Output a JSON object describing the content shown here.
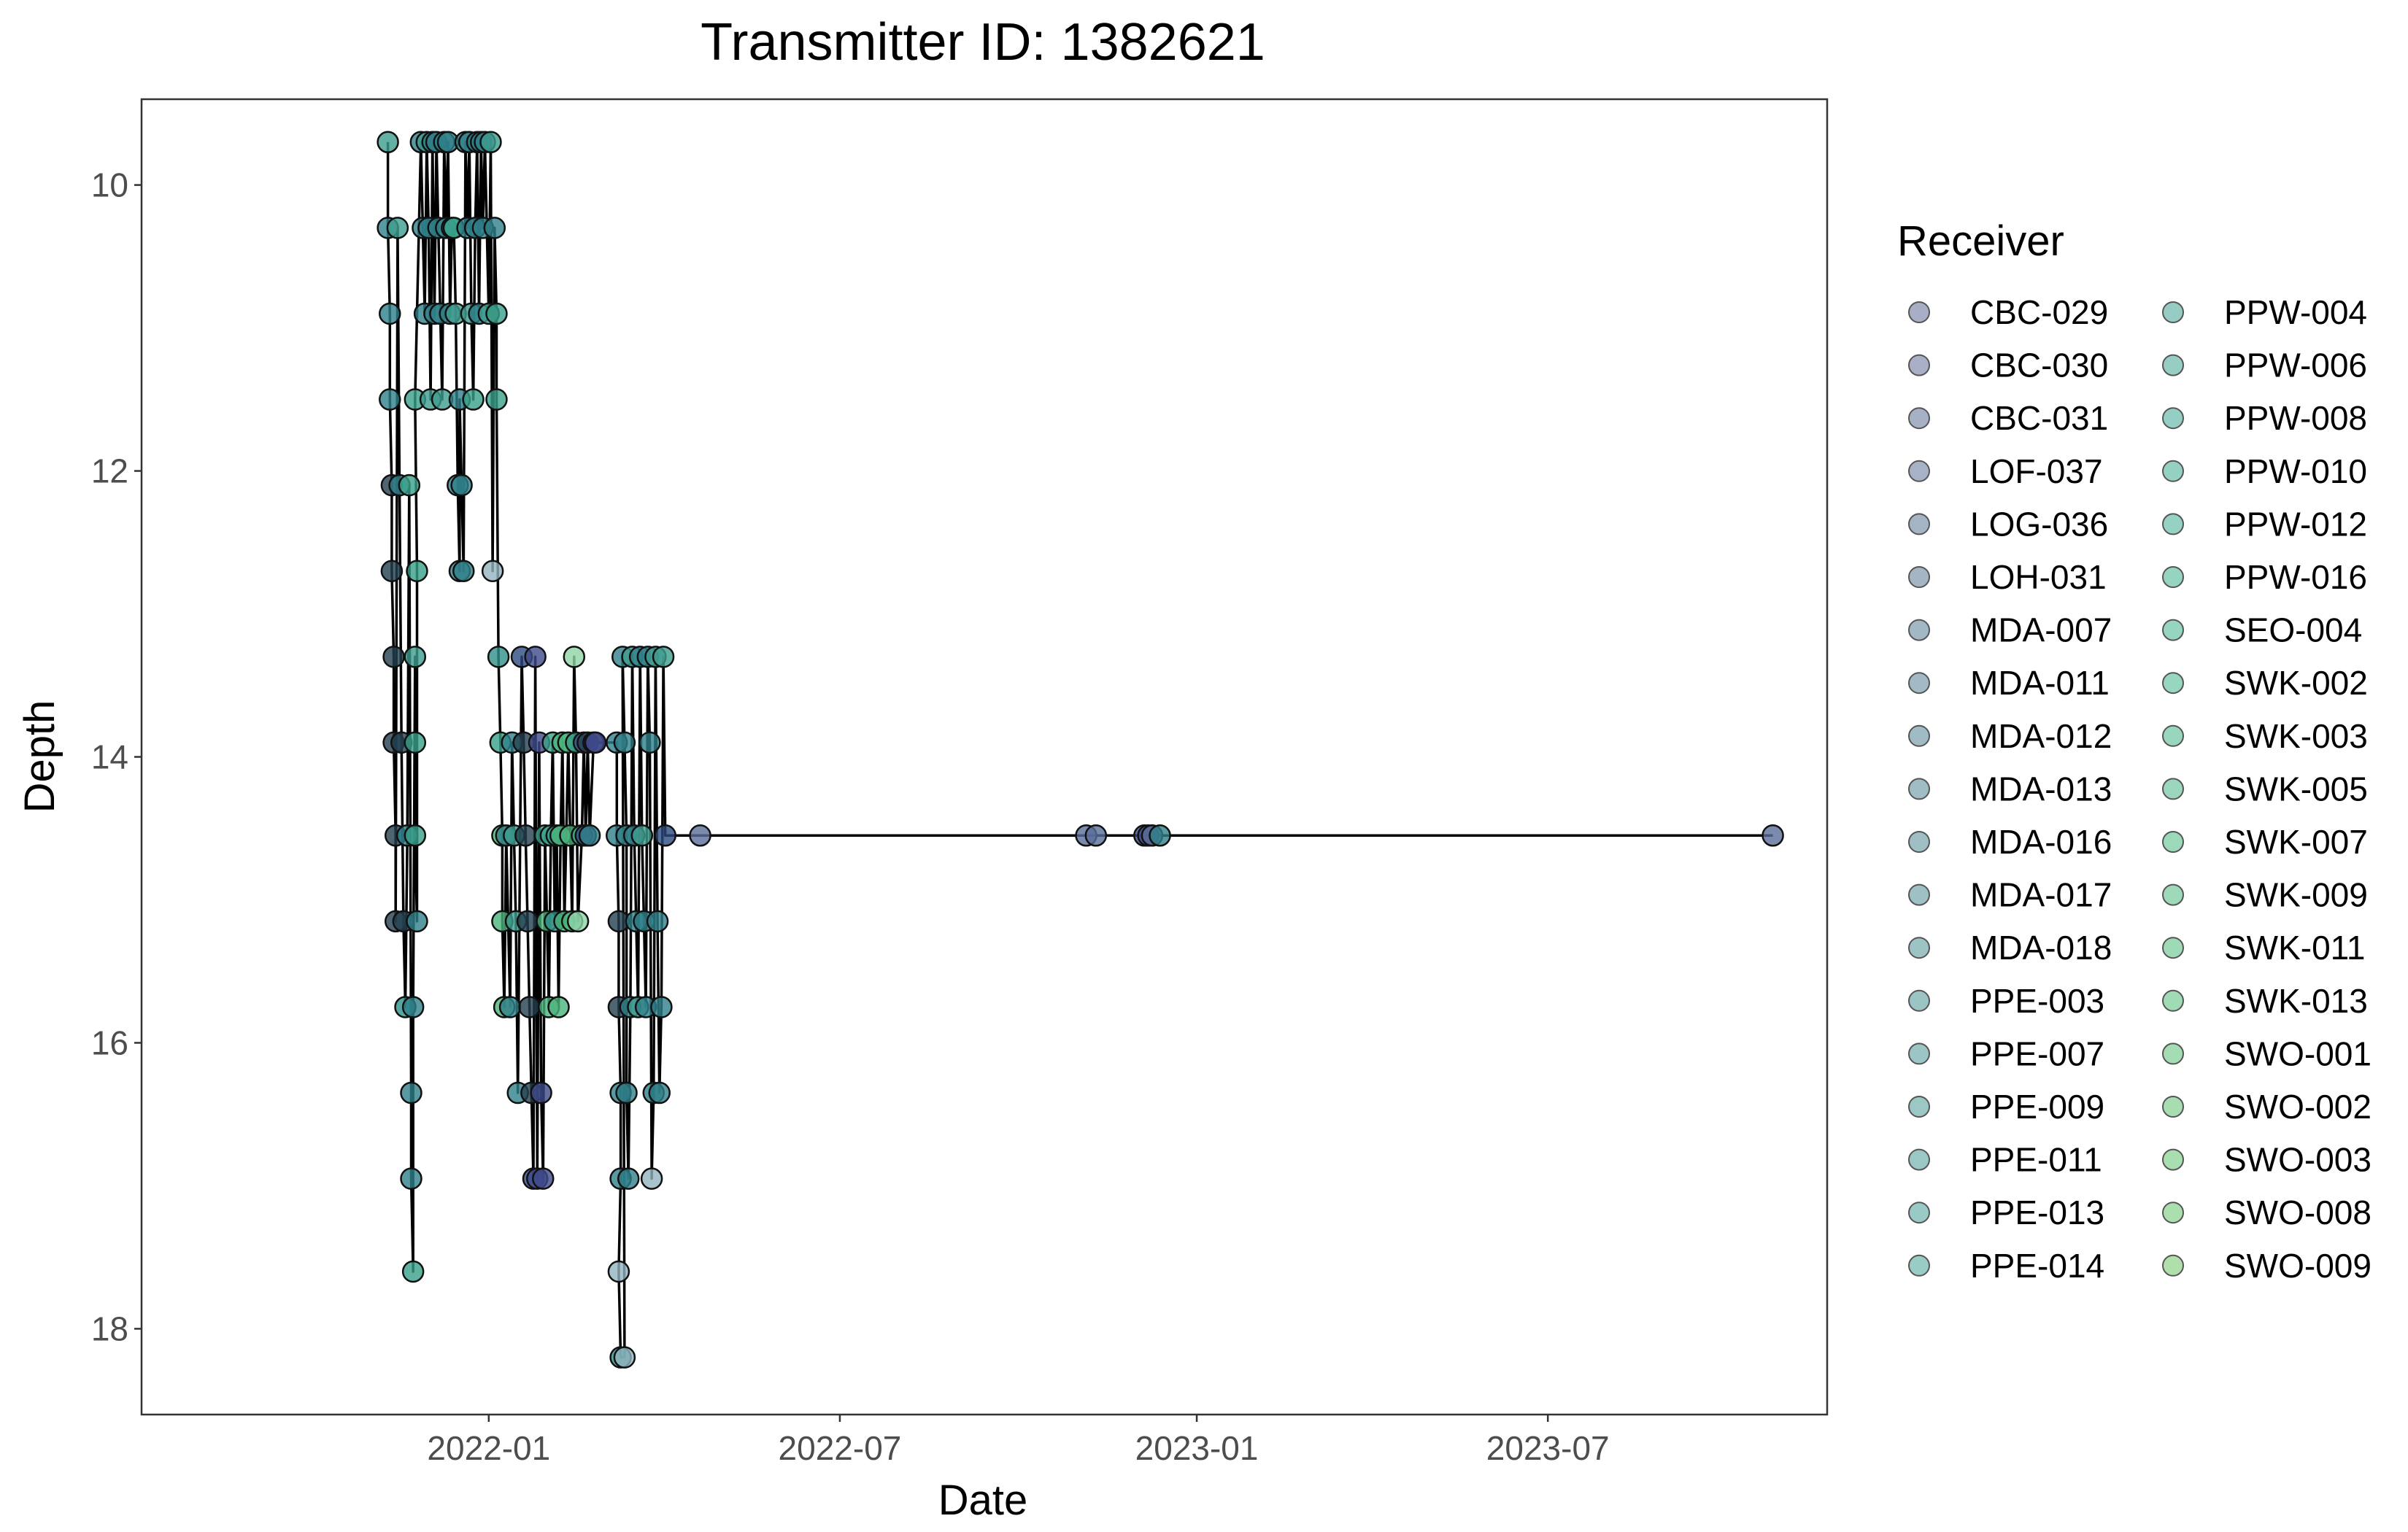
{
  "chart_data": {
    "type": "scatter",
    "title": "Transmitter ID: 1382621",
    "xlabel": "Date",
    "ylabel": "Depth",
    "x_type": "date",
    "xlim": [
      "2021-07-06",
      "2023-11-22"
    ],
    "ylim": [
      18.6,
      9.4
    ],
    "y_reversed": true,
    "x_ticks": [
      "2022-01",
      "2022-07",
      "2023-01",
      "2023-07"
    ],
    "y_ticks": [
      10,
      12,
      14,
      16,
      18
    ],
    "grid": false,
    "connected_by_line": true,
    "legend": {
      "title": "Receiver",
      "placement": "right",
      "columns": 2
    },
    "receivers": [
      {
        "name": "CBC-029",
        "color": "#9fa5c0"
      },
      {
        "name": "CBC-030",
        "color": "#9ea6c0"
      },
      {
        "name": "CBC-031",
        "color": "#9da8c0"
      },
      {
        "name": "LOF-037",
        "color": "#9caabf"
      },
      {
        "name": "LOG-036",
        "color": "#9bacbf"
      },
      {
        "name": "LOH-031",
        "color": "#9aaebf"
      },
      {
        "name": "MDA-007",
        "color": "#99b0bf"
      },
      {
        "name": "MDA-011",
        "color": "#98b2bf"
      },
      {
        "name": "MDA-012",
        "color": "#97b4bf"
      },
      {
        "name": "MDA-013",
        "color": "#96b6bf"
      },
      {
        "name": "MDA-016",
        "color": "#95b8bf"
      },
      {
        "name": "MDA-017",
        "color": "#94babf"
      },
      {
        "name": "MDA-018",
        "color": "#93bcbf"
      },
      {
        "name": "PPE-003",
        "color": "#92bebf"
      },
      {
        "name": "PPE-007",
        "color": "#91c0bf"
      },
      {
        "name": "PPE-009",
        "color": "#90c1bf"
      },
      {
        "name": "PPE-011",
        "color": "#8fc3bf"
      },
      {
        "name": "PPE-013",
        "color": "#8ec4bf"
      },
      {
        "name": "PPE-014",
        "color": "#8dc6bf"
      },
      {
        "name": "PPW-004",
        "color": "#8cc7be"
      },
      {
        "name": "PPW-006",
        "color": "#8bc9be"
      },
      {
        "name": "PPW-008",
        "color": "#8acabd"
      },
      {
        "name": "PPW-010",
        "color": "#89ccbd"
      },
      {
        "name": "PPW-012",
        "color": "#89cdbc"
      },
      {
        "name": "PPW-016",
        "color": "#8acfba"
      },
      {
        "name": "SEO-004",
        "color": "#8bd0b9"
      },
      {
        "name": "SWK-002",
        "color": "#8cd1b8"
      },
      {
        "name": "SWK-003",
        "color": "#8dd2b7"
      },
      {
        "name": "SWK-005",
        "color": "#8fd3b5"
      },
      {
        "name": "SWK-007",
        "color": "#91d4b3"
      },
      {
        "name": "SWK-009",
        "color": "#93d5b1"
      },
      {
        "name": "SWK-011",
        "color": "#95d6af"
      },
      {
        "name": "SWK-013",
        "color": "#97d7ad"
      },
      {
        "name": "SWO-001",
        "color": "#9ad8ab"
      },
      {
        "name": "SWO-002",
        "color": "#9dd9a9"
      },
      {
        "name": "SWO-003",
        "color": "#a0daa7"
      },
      {
        "name": "SWO-008",
        "color": "#a3dba5"
      },
      {
        "name": "SWO-009",
        "color": "#a7dca3"
      }
    ],
    "points": [
      {
        "x": "2021-11-10",
        "y": 9.7,
        "c": "#3e9c8e"
      },
      {
        "x": "2021-11-10",
        "y": 10.3,
        "c": "#2f7f8a"
      },
      {
        "x": "2021-11-11",
        "y": 10.9,
        "c": "#2f7f8a"
      },
      {
        "x": "2021-11-11",
        "y": 11.5,
        "c": "#2f7f8a"
      },
      {
        "x": "2021-11-12",
        "y": 12.1,
        "c": "#23404f"
      },
      {
        "x": "2021-11-12",
        "y": 12.7,
        "c": "#23404f"
      },
      {
        "x": "2021-11-13",
        "y": 13.3,
        "c": "#23404f"
      },
      {
        "x": "2021-11-13",
        "y": 13.9,
        "c": "#23404f"
      },
      {
        "x": "2021-11-14",
        "y": 14.55,
        "c": "#23404f"
      },
      {
        "x": "2021-11-14",
        "y": 15.15,
        "c": "#23404f"
      },
      {
        "x": "2021-11-15",
        "y": 10.3,
        "c": "#3e9c8e"
      },
      {
        "x": "2021-11-16",
        "y": 12.1,
        "c": "#2f7f8a"
      },
      {
        "x": "2021-11-17",
        "y": 13.9,
        "c": "#23404f"
      },
      {
        "x": "2021-11-18",
        "y": 15.15,
        "c": "#23404f"
      },
      {
        "x": "2021-11-19",
        "y": 15.75,
        "c": "#2f8f8a"
      },
      {
        "x": "2021-11-20",
        "y": 14.55,
        "c": "#2f7f8a"
      },
      {
        "x": "2021-11-21",
        "y": 12.1,
        "c": "#3aa08a"
      },
      {
        "x": "2021-11-22",
        "y": 16.35,
        "c": "#2f7f8a"
      },
      {
        "x": "2021-11-22",
        "y": 16.95,
        "c": "#2f7f8a"
      },
      {
        "x": "2021-11-23",
        "y": 17.6,
        "c": "#3aa08a"
      },
      {
        "x": "2021-11-23",
        "y": 15.75,
        "c": "#2f7f8a"
      },
      {
        "x": "2021-11-24",
        "y": 13.3,
        "c": "#3e9c8e"
      },
      {
        "x": "2021-11-24",
        "y": 13.9,
        "c": "#3aa08a"
      },
      {
        "x": "2021-11-24",
        "y": 14.55,
        "c": "#3aa08a"
      },
      {
        "x": "2021-11-25",
        "y": 15.15,
        "c": "#2f7f8a"
      },
      {
        "x": "2021-11-25",
        "y": 12.7,
        "c": "#3aa08a"
      },
      {
        "x": "2021-11-24",
        "y": 11.5,
        "c": "#3aa08a"
      },
      {
        "x": "2021-11-27",
        "y": 9.7,
        "c": "#2f7f8a"
      },
      {
        "x": "2021-11-28",
        "y": 10.3,
        "c": "#2f7f8a"
      },
      {
        "x": "2021-11-29",
        "y": 10.9,
        "c": "#2f7f8a"
      },
      {
        "x": "2021-11-30",
        "y": 9.7,
        "c": "#3e9c8e"
      },
      {
        "x": "2021-12-01",
        "y": 10.3,
        "c": "#2f7f8a"
      },
      {
        "x": "2021-12-02",
        "y": 11.5,
        "c": "#3e9c8e"
      },
      {
        "x": "2021-12-03",
        "y": 9.7,
        "c": "#2f7f8a"
      },
      {
        "x": "2021-12-04",
        "y": 10.9,
        "c": "#2f7f8a"
      },
      {
        "x": "2021-12-05",
        "y": 9.7,
        "c": "#2f7f8a"
      },
      {
        "x": "2021-12-06",
        "y": 10.3,
        "c": "#2f7f8a"
      },
      {
        "x": "2021-12-07",
        "y": 10.9,
        "c": "#2f7f8a"
      },
      {
        "x": "2021-12-08",
        "y": 11.5,
        "c": "#3e9c8e"
      },
      {
        "x": "2021-12-09",
        "y": 9.7,
        "c": "#2f7f8a"
      },
      {
        "x": "2021-12-10",
        "y": 10.3,
        "c": "#2f7f8a"
      },
      {
        "x": "2021-12-11",
        "y": 9.7,
        "c": "#2f7f8a"
      },
      {
        "x": "2021-12-12",
        "y": 10.9,
        "c": "#2f7f8a"
      },
      {
        "x": "2021-12-13",
        "y": 10.3,
        "c": "#3e9c8e"
      },
      {
        "x": "2021-12-14",
        "y": 10.3,
        "c": "#3aa08a"
      },
      {
        "x": "2021-12-15",
        "y": 10.9,
        "c": "#3e9c8e"
      },
      {
        "x": "2021-12-16",
        "y": 12.1,
        "c": "#2f7f8a"
      },
      {
        "x": "2021-12-17",
        "y": 12.7,
        "c": "#2f7f8a"
      },
      {
        "x": "2021-12-17",
        "y": 11.5,
        "c": "#2f7f8a"
      },
      {
        "x": "2021-12-18",
        "y": 12.1,
        "c": "#2f7f8a"
      },
      {
        "x": "2021-12-19",
        "y": 12.7,
        "c": "#2f7f8a"
      },
      {
        "x": "2021-12-20",
        "y": 9.7,
        "c": "#2f7f8a"
      },
      {
        "x": "2021-12-21",
        "y": 10.3,
        "c": "#2f7f8a"
      },
      {
        "x": "2021-12-22",
        "y": 9.7,
        "c": "#2f7f8a"
      },
      {
        "x": "2021-12-23",
        "y": 10.9,
        "c": "#3e9c8e"
      },
      {
        "x": "2021-12-24",
        "y": 11.5,
        "c": "#3aa08a"
      },
      {
        "x": "2021-12-25",
        "y": 10.3,
        "c": "#2f7f8a"
      },
      {
        "x": "2021-12-26",
        "y": 9.7,
        "c": "#2f7f8a"
      },
      {
        "x": "2021-12-27",
        "y": 10.9,
        "c": "#2f7f8a"
      },
      {
        "x": "2021-12-28",
        "y": 9.7,
        "c": "#2f7f8a"
      },
      {
        "x": "2021-12-29",
        "y": 10.3,
        "c": "#2f7f8a"
      },
      {
        "x": "2021-12-30",
        "y": 9.7,
        "c": "#2f7f8a"
      },
      {
        "x": "2022-01-01",
        "y": 10.9,
        "c": "#3e9c8e"
      },
      {
        "x": "2022-01-02",
        "y": 9.7,
        "c": "#3e9c8e"
      },
      {
        "x": "2022-01-03",
        "y": 12.7,
        "c": "#92b4bf"
      },
      {
        "x": "2022-01-04",
        "y": 10.3,
        "c": "#2f7f8a"
      },
      {
        "x": "2022-01-05",
        "y": 10.9,
        "c": "#3aa08a"
      },
      {
        "x": "2022-01-05",
        "y": 11.5,
        "c": "#3aa08a"
      },
      {
        "x": "2022-01-06",
        "y": 13.3,
        "c": "#2f8f8a"
      },
      {
        "x": "2022-01-07",
        "y": 13.9,
        "c": "#3aa08a"
      },
      {
        "x": "2022-01-08",
        "y": 14.55,
        "c": "#4bb37a"
      },
      {
        "x": "2022-01-08",
        "y": 15.15,
        "c": "#4bb37a"
      },
      {
        "x": "2022-01-09",
        "y": 15.75,
        "c": "#4bb37a"
      },
      {
        "x": "2022-01-10",
        "y": 14.55,
        "c": "#2f7f8a"
      },
      {
        "x": "2022-01-12",
        "y": 15.75,
        "c": "#2f7f8a"
      },
      {
        "x": "2022-01-13",
        "y": 13.9,
        "c": "#2f7f8a"
      },
      {
        "x": "2022-01-14",
        "y": 14.55,
        "c": "#3e9c8e"
      },
      {
        "x": "2022-01-15",
        "y": 15.15,
        "c": "#3e9c8e"
      },
      {
        "x": "2022-01-16",
        "y": 16.35,
        "c": "#2f7f8a"
      },
      {
        "x": "2022-01-18",
        "y": 13.3,
        "c": "#2d4a80"
      },
      {
        "x": "2022-01-19",
        "y": 13.9,
        "c": "#23404f"
      },
      {
        "x": "2022-01-20",
        "y": 14.55,
        "c": "#23404f"
      },
      {
        "x": "2022-01-21",
        "y": 15.15,
        "c": "#23404f"
      },
      {
        "x": "2022-01-22",
        "y": 15.75,
        "c": "#23404f"
      },
      {
        "x": "2022-01-23",
        "y": 16.35,
        "c": "#23404f"
      },
      {
        "x": "2022-01-24",
        "y": 16.95,
        "c": "#2d4a80"
      },
      {
        "x": "2022-01-25",
        "y": 13.3,
        "c": "#3f4a8a"
      },
      {
        "x": "2022-01-26",
        "y": 16.95,
        "c": "#3f4a8a"
      },
      {
        "x": "2022-01-27",
        "y": 13.9,
        "c": "#3f4a8a"
      },
      {
        "x": "2022-01-28",
        "y": 16.35,
        "c": "#3f4a8a"
      },
      {
        "x": "2022-01-29",
        "y": 16.95,
        "c": "#3f4a8a"
      },
      {
        "x": "2022-01-30",
        "y": 14.55,
        "c": "#3aa08a"
      },
      {
        "x": "2022-01-31",
        "y": 15.15,
        "c": "#4bb37a"
      },
      {
        "x": "2022-02-01",
        "y": 15.75,
        "c": "#4bb37a"
      },
      {
        "x": "2022-02-02",
        "y": 14.55,
        "c": "#3aa08a"
      },
      {
        "x": "2022-02-03",
        "y": 13.9,
        "c": "#3aa08a"
      },
      {
        "x": "2022-02-04",
        "y": 15.15,
        "c": "#2f8f8a"
      },
      {
        "x": "2022-02-05",
        "y": 14.55,
        "c": "#3aa08a"
      },
      {
        "x": "2022-02-06",
        "y": 15.75,
        "c": "#4bb37a"
      },
      {
        "x": "2022-02-07",
        "y": 14.55,
        "c": "#4bb37a"
      },
      {
        "x": "2022-02-08",
        "y": 13.9,
        "c": "#4bb37a"
      },
      {
        "x": "2022-02-09",
        "y": 15.15,
        "c": "#4bb37a"
      },
      {
        "x": "2022-02-11",
        "y": 13.9,
        "c": "#4bb37a"
      },
      {
        "x": "2022-02-12",
        "y": 14.55,
        "c": "#4bb37a"
      },
      {
        "x": "2022-02-13",
        "y": 15.15,
        "c": "#4bb37a"
      },
      {
        "x": "2022-02-14",
        "y": 13.3,
        "c": "#8fd4a8"
      },
      {
        "x": "2022-02-15",
        "y": 13.9,
        "c": "#3aa08a"
      },
      {
        "x": "2022-02-16",
        "y": 15.15,
        "c": "#8fd4a8"
      },
      {
        "x": "2022-02-18",
        "y": 14.55,
        "c": "#3aa08a"
      },
      {
        "x": "2022-02-19",
        "y": 13.9,
        "c": "#3f4a8a"
      },
      {
        "x": "2022-02-20",
        "y": 14.55,
        "c": "#3f4a8a"
      },
      {
        "x": "2022-02-21",
        "y": 13.9,
        "c": "#23404f"
      },
      {
        "x": "2022-02-22",
        "y": 14.55,
        "c": "#2f7f8a"
      },
      {
        "x": "2022-02-24",
        "y": 13.9,
        "c": "#3f4a8a"
      },
      {
        "x": "2022-02-25",
        "y": 13.9,
        "c": "#3f4a8a"
      },
      {
        "x": "2022-03-08",
        "y": 13.9,
        "c": "#2f7f8a"
      },
      {
        "x": "2022-03-08",
        "y": 14.55,
        "c": "#2f7f8a"
      },
      {
        "x": "2022-03-09",
        "y": 15.15,
        "c": "#23404f"
      },
      {
        "x": "2022-03-09",
        "y": 15.75,
        "c": "#23404f"
      },
      {
        "x": "2022-03-10",
        "y": 16.35,
        "c": "#2f7f8a"
      },
      {
        "x": "2022-03-10",
        "y": 16.95,
        "c": "#2f7f8a"
      },
      {
        "x": "2022-03-09",
        "y": 17.6,
        "c": "#92b4bf"
      },
      {
        "x": "2022-03-10",
        "y": 18.2,
        "c": "#2f8f8a"
      },
      {
        "x": "2022-03-12",
        "y": 18.2,
        "c": "#92b4bf"
      },
      {
        "x": "2022-03-11",
        "y": 13.3,
        "c": "#2f7f8a"
      },
      {
        "x": "2022-03-12",
        "y": 13.9,
        "c": "#2f7f8a"
      },
      {
        "x": "2022-03-13",
        "y": 14.55,
        "c": "#2f7f8a"
      },
      {
        "x": "2022-03-13",
        "y": 16.35,
        "c": "#2f7f8a"
      },
      {
        "x": "2022-03-14",
        "y": 16.95,
        "c": "#2f7f8a"
      },
      {
        "x": "2022-03-15",
        "y": 15.75,
        "c": "#2f7f8a"
      },
      {
        "x": "2022-03-16",
        "y": 13.3,
        "c": "#3e9c8e"
      },
      {
        "x": "2022-03-17",
        "y": 14.55,
        "c": "#2f7f8a"
      },
      {
        "x": "2022-03-18",
        "y": 15.15,
        "c": "#2f7f8a"
      },
      {
        "x": "2022-03-19",
        "y": 15.75,
        "c": "#3e9c8e"
      },
      {
        "x": "2022-03-20",
        "y": 13.3,
        "c": "#2f7f8a"
      },
      {
        "x": "2022-03-21",
        "y": 14.55,
        "c": "#3e9c8e"
      },
      {
        "x": "2022-03-22",
        "y": 15.15,
        "c": "#2f7f8a"
      },
      {
        "x": "2022-03-23",
        "y": 15.75,
        "c": "#2f7f8a"
      },
      {
        "x": "2022-03-24",
        "y": 13.3,
        "c": "#2f7f8a"
      },
      {
        "x": "2022-03-25",
        "y": 13.9,
        "c": "#2f7f8a"
      },
      {
        "x": "2022-03-26",
        "y": 16.95,
        "c": "#92b4bf"
      },
      {
        "x": "2022-03-27",
        "y": 16.35,
        "c": "#2f7f8a"
      },
      {
        "x": "2022-03-28",
        "y": 13.3,
        "c": "#3e9c8e"
      },
      {
        "x": "2022-03-29",
        "y": 15.15,
        "c": "#2f7f8a"
      },
      {
        "x": "2022-03-30",
        "y": 16.35,
        "c": "#2f7f8a"
      },
      {
        "x": "2022-03-31",
        "y": 15.75,
        "c": "#2f7f8a"
      },
      {
        "x": "2022-04-01",
        "y": 13.3,
        "c": "#3e9c8e"
      },
      {
        "x": "2022-04-02",
        "y": 14.55,
        "c": "#2d4a80"
      },
      {
        "x": "2022-04-20",
        "y": 14.55,
        "c": "#5a6e99"
      },
      {
        "x": "2022-11-05",
        "y": 14.55,
        "c": "#5a6e99"
      },
      {
        "x": "2022-11-10",
        "y": 14.55,
        "c": "#5a6e99"
      },
      {
        "x": "2022-12-05",
        "y": 14.55,
        "c": "#3f4a8a"
      },
      {
        "x": "2022-12-07",
        "y": 14.55,
        "c": "#3f4a8a"
      },
      {
        "x": "2022-12-09",
        "y": 14.55,
        "c": "#5a6e99"
      },
      {
        "x": "2022-12-13",
        "y": 14.55,
        "c": "#2f7f8a"
      },
      {
        "x": "2023-10-25",
        "y": 14.55,
        "c": "#5a6e99"
      }
    ]
  }
}
